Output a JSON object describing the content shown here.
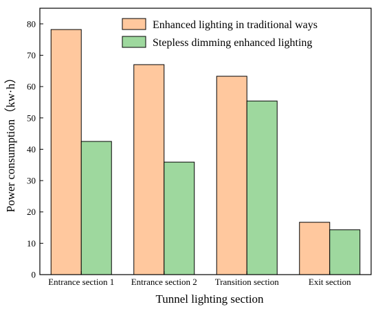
{
  "chart_data": {
    "type": "bar",
    "title": "",
    "xlabel": "Tunnel lighting section",
    "ylabel": "Power consumption（kw·h）",
    "categories": [
      "Entrance section 1",
      "Entrance section 2",
      "Transition section",
      "Exit section"
    ],
    "series": [
      {
        "name": "Enhanced lighting in traditional ways",
        "color": "#FFC89E",
        "values": [
          78.2,
          67,
          63.3,
          16.7
        ]
      },
      {
        "name": "Stepless dimming enhanced lighting",
        "color": "#9ED89E",
        "values": [
          42.5,
          35.9,
          55.4,
          14.3
        ]
      }
    ],
    "ylim": [
      0,
      85
    ],
    "yticks": [
      0,
      10,
      20,
      30,
      40,
      50,
      60,
      70,
      80
    ],
    "grid": false,
    "legend_position": "top-right"
  }
}
